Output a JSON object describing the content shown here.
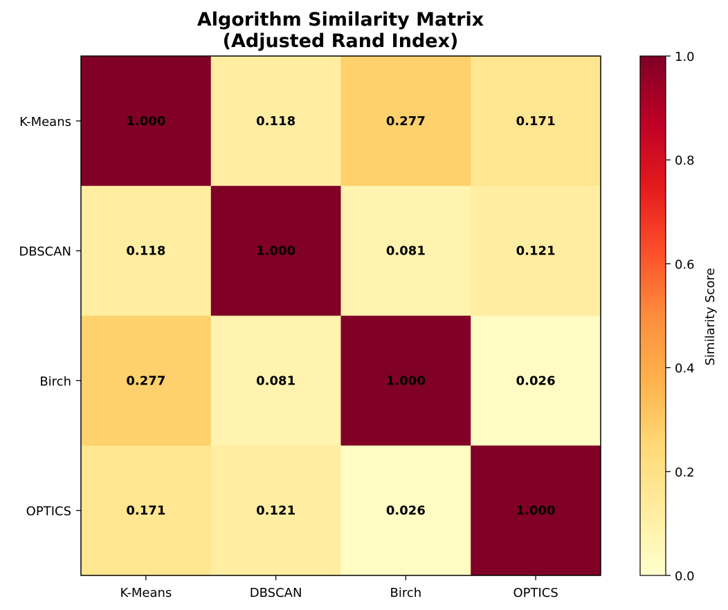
{
  "chart_data": {
    "type": "heatmap",
    "title": "Algorithm Similarity Matrix",
    "subtitle": "(Adjusted Rand Index)",
    "x_categories": [
      "K-Means",
      "DBSCAN",
      "Birch",
      "OPTICS"
    ],
    "y_categories": [
      "K-Means",
      "DBSCAN",
      "Birch",
      "OPTICS"
    ],
    "values": [
      [
        1.0,
        0.118,
        0.277,
        0.171
      ],
      [
        0.118,
        1.0,
        0.081,
        0.121
      ],
      [
        0.277,
        0.081,
        1.0,
        0.026
      ],
      [
        0.171,
        0.121,
        0.026,
        1.0
      ]
    ],
    "value_labels": [
      [
        "1.000",
        "0.118",
        "0.277",
        "0.171"
      ],
      [
        "0.118",
        "1.000",
        "0.081",
        "0.121"
      ],
      [
        "0.277",
        "0.081",
        "1.000",
        "0.026"
      ],
      [
        "0.171",
        "0.121",
        "0.026",
        "1.000"
      ]
    ],
    "colormap": "YlOrRd",
    "colorbar": {
      "label": "Similarity Score",
      "range": [
        0,
        1
      ],
      "ticks": [
        "0.0",
        "0.2",
        "0.4",
        "0.6",
        "0.8",
        "1.0"
      ]
    },
    "grid": false,
    "xlabel": "",
    "ylabel": ""
  }
}
